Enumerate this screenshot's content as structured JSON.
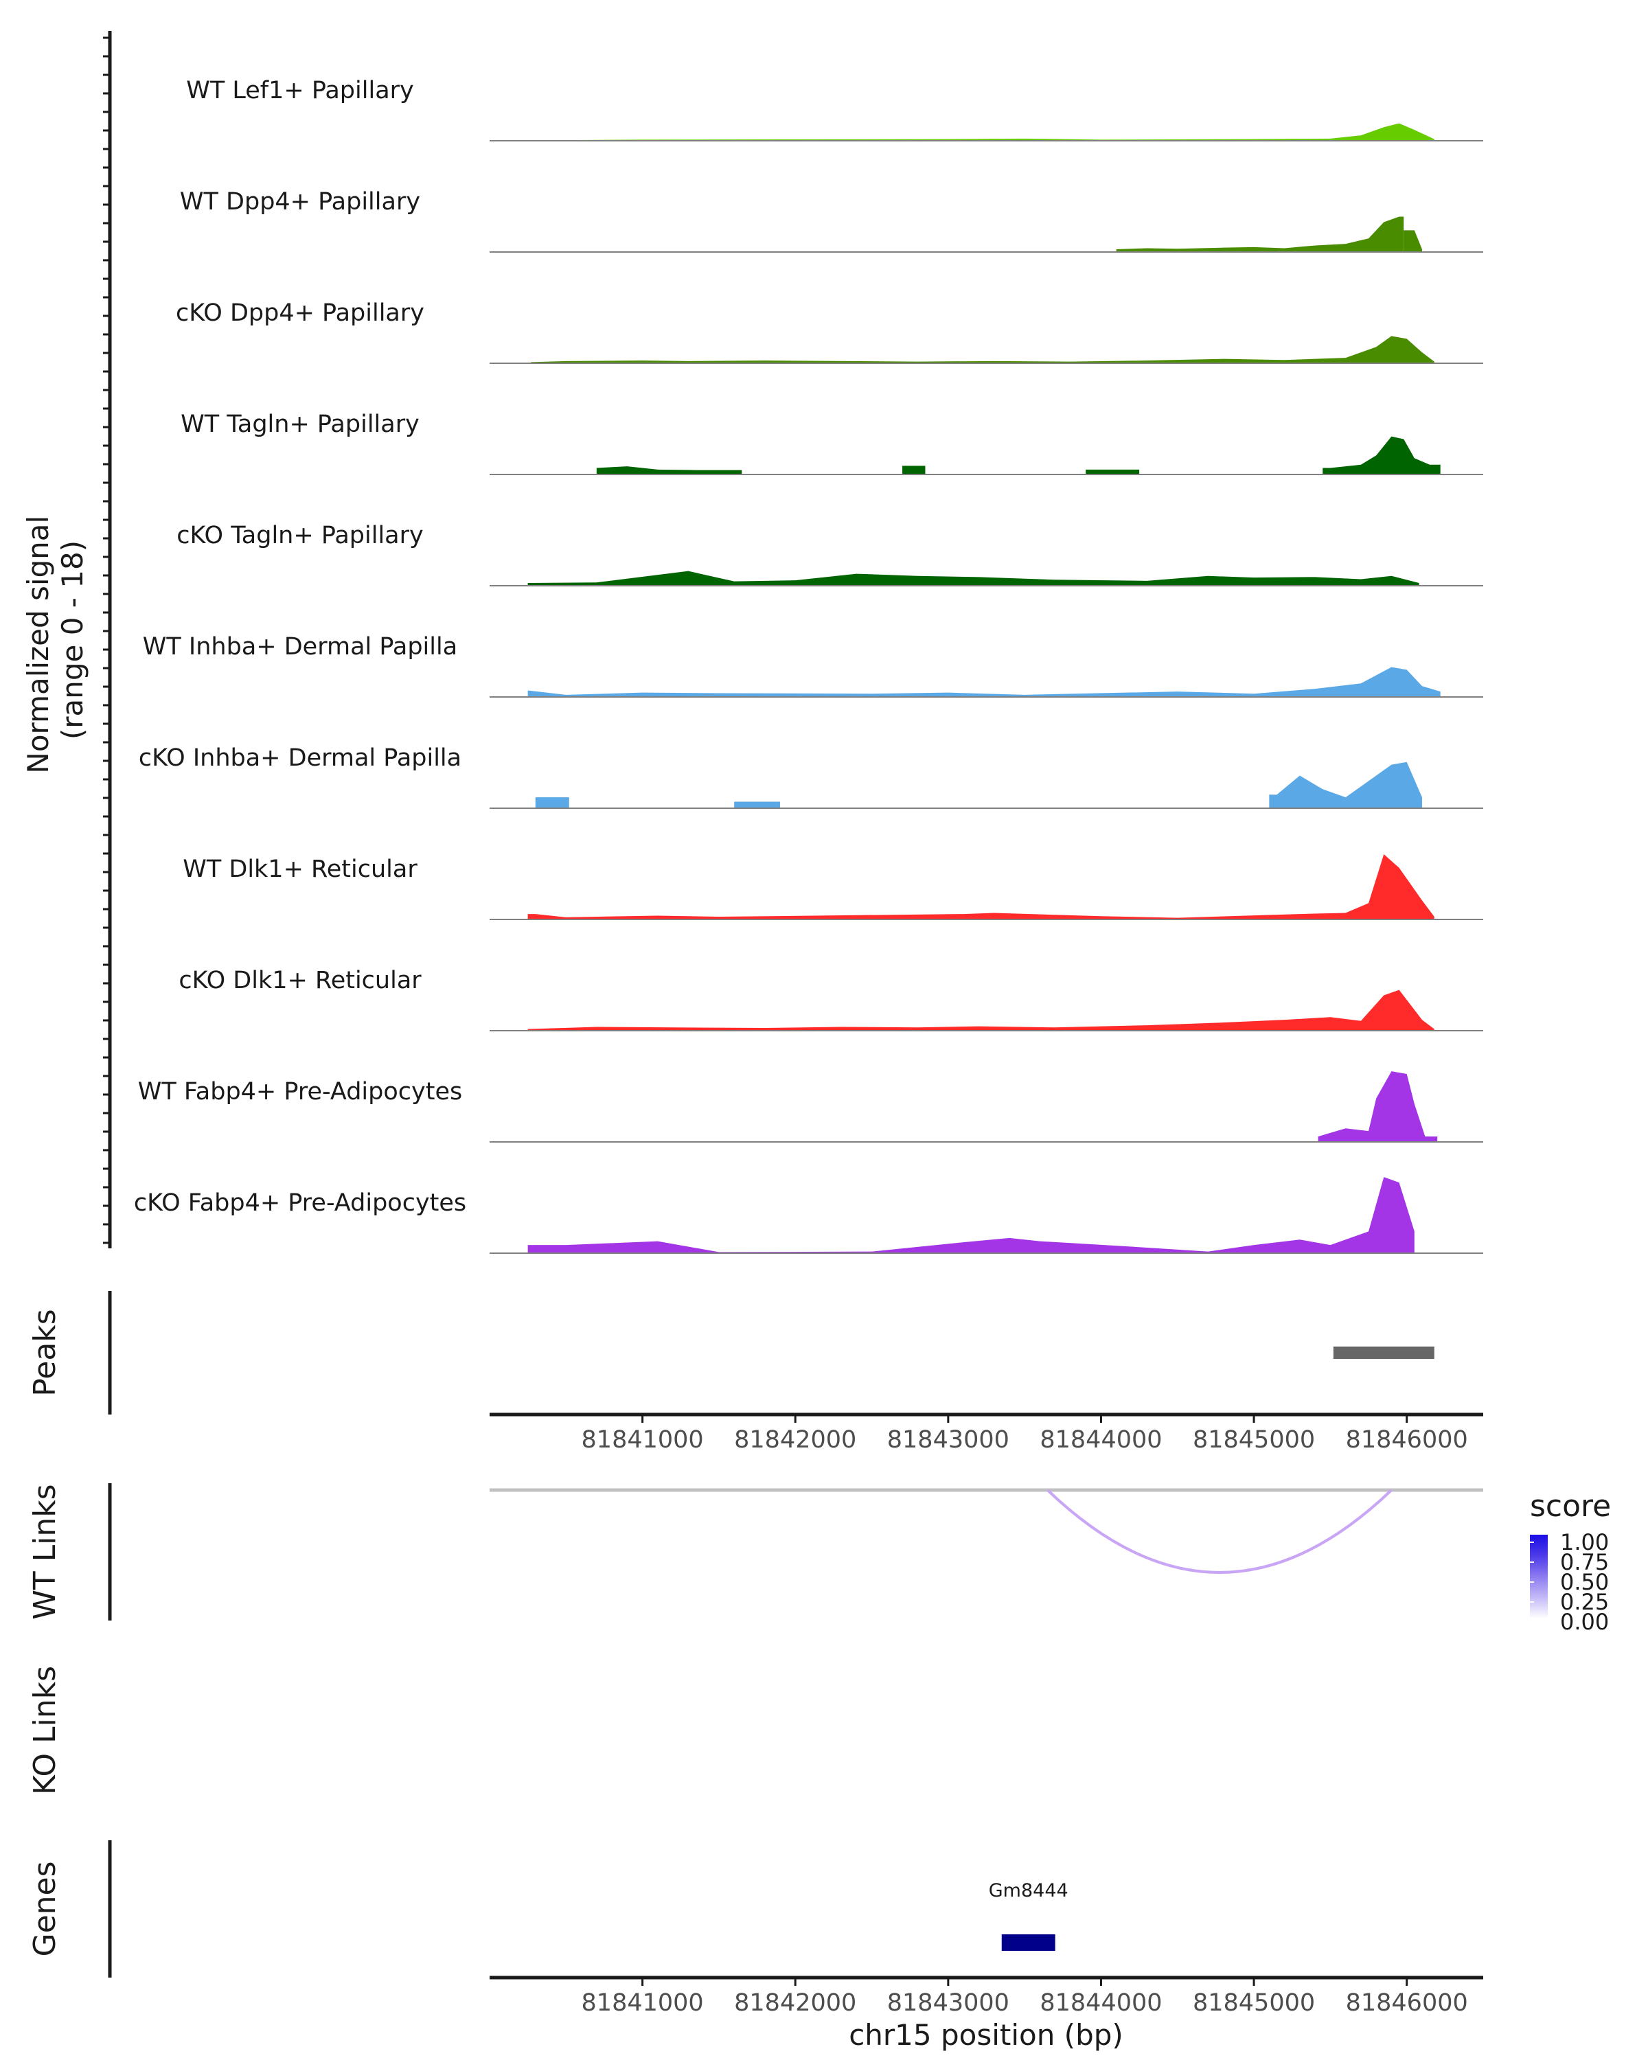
{
  "chart_data": {
    "type": "area",
    "region": {
      "chromosome": "chr15",
      "start": 81840000,
      "end": 81846500
    },
    "ylabel": {
      "line1": "Normalized signal",
      "line2": "(range 0 - 18)"
    },
    "ylim": [
      0,
      18
    ],
    "xlabel": "chr15 position (bp)",
    "xticks": [
      {
        "value": 81841000,
        "label": "81841000"
      },
      {
        "value": 81842000,
        "label": "81842000"
      },
      {
        "value": 81843000,
        "label": "81843000"
      },
      {
        "value": 81844000,
        "label": "81844000"
      },
      {
        "value": 81845000,
        "label": "81845000"
      },
      {
        "value": 81846000,
        "label": "81846000"
      }
    ],
    "tracks": [
      {
        "name": "WT Lef1+ Papillary",
        "color": "#66cc00",
        "segments": [
          [
            81840380,
            81846180
          ]
        ],
        "points": [
          [
            81840380,
            0.1
          ],
          [
            81841000,
            0.2
          ],
          [
            81842000,
            0.25
          ],
          [
            81843000,
            0.3
          ],
          [
            81843500,
            0.4
          ],
          [
            81844000,
            0.2
          ],
          [
            81845000,
            0.3
          ],
          [
            81845500,
            0.4
          ],
          [
            81845700,
            1.0
          ],
          [
            81845850,
            2.5
          ],
          [
            81845950,
            3.2
          ],
          [
            81846050,
            2.0
          ],
          [
            81846180,
            0.3
          ]
        ]
      },
      {
        "name": "WT Dpp4+ Papillary",
        "color": "#4a8c00",
        "segments": [
          [
            81844100,
            81845980
          ],
          [
            81845980,
            81846100
          ]
        ],
        "points": [
          [
            81844100,
            0.5
          ],
          [
            81844300,
            0.7
          ],
          [
            81844500,
            0.6
          ],
          [
            81844800,
            0.8
          ],
          [
            81845000,
            0.9
          ],
          [
            81845200,
            0.7
          ],
          [
            81845400,
            1.2
          ],
          [
            81845600,
            1.5
          ],
          [
            81845750,
            2.5
          ],
          [
            81845850,
            5.5
          ],
          [
            81845950,
            6.5
          ],
          [
            81846050,
            4.0
          ],
          [
            81846100,
            0.5
          ]
        ]
      },
      {
        "name": "cKO Dpp4+ Papillary",
        "color": "#4a8c00",
        "segments": [
          [
            81840270,
            81846180
          ]
        ],
        "points": [
          [
            81840270,
            0.2
          ],
          [
            81840500,
            0.4
          ],
          [
            81841000,
            0.5
          ],
          [
            81841300,
            0.4
          ],
          [
            81841800,
            0.5
          ],
          [
            81842800,
            0.3
          ],
          [
            81843300,
            0.4
          ],
          [
            81843800,
            0.3
          ],
          [
            81844300,
            0.5
          ],
          [
            81844800,
            0.8
          ],
          [
            81845200,
            0.6
          ],
          [
            81845600,
            1.0
          ],
          [
            81845800,
            3.0
          ],
          [
            81845900,
            5.0
          ],
          [
            81846000,
            4.5
          ],
          [
            81846100,
            2.0
          ],
          [
            81846180,
            0.3
          ]
        ]
      },
      {
        "name": "WT Tagln+ Papillary",
        "color": "#006400",
        "segments": [
          [
            81840700,
            81841650
          ],
          [
            81842700,
            81842850
          ],
          [
            81843900,
            81844250
          ],
          [
            81845450,
            81846220
          ]
        ],
        "points": [
          [
            81840700,
            1.2
          ],
          [
            81840900,
            1.5
          ],
          [
            81841100,
            0.9
          ],
          [
            81841400,
            0.8
          ],
          [
            81842750,
            1.6
          ],
          [
            81844000,
            0.9
          ],
          [
            81844200,
            0.9
          ],
          [
            81845500,
            1.2
          ],
          [
            81845700,
            1.8
          ],
          [
            81845800,
            3.5
          ],
          [
            81845900,
            7.0
          ],
          [
            81845980,
            6.5
          ],
          [
            81846050,
            3.0
          ],
          [
            81846150,
            1.8
          ],
          [
            81846220,
            1.8
          ]
        ]
      },
      {
        "name": "cKO Tagln+ Papillary",
        "color": "#006400",
        "segments": [
          [
            81840250,
            81846080
          ]
        ],
        "points": [
          [
            81840250,
            0.5
          ],
          [
            81840700,
            0.6
          ],
          [
            81841300,
            2.7
          ],
          [
            81841600,
            0.8
          ],
          [
            81842000,
            1.0
          ],
          [
            81842400,
            2.2
          ],
          [
            81842800,
            1.8
          ],
          [
            81843200,
            1.6
          ],
          [
            81843700,
            1.1
          ],
          [
            81844300,
            0.9
          ],
          [
            81844700,
            1.8
          ],
          [
            81845000,
            1.5
          ],
          [
            81845400,
            1.6
          ],
          [
            81845700,
            1.2
          ],
          [
            81845900,
            1.8
          ],
          [
            81846080,
            0.5
          ]
        ]
      },
      {
        "name": "WT Inhba+ Dermal Papilla",
        "color": "#5aa9e6",
        "segments": [
          [
            81840250,
            81846220
          ]
        ],
        "points": [
          [
            81840250,
            1.2
          ],
          [
            81840500,
            0.4
          ],
          [
            81841000,
            0.8
          ],
          [
            81841500,
            0.7
          ],
          [
            81842500,
            0.6
          ],
          [
            81843000,
            0.8
          ],
          [
            81843500,
            0.4
          ],
          [
            81844500,
            1.0
          ],
          [
            81845000,
            0.6
          ],
          [
            81845400,
            1.5
          ],
          [
            81845700,
            2.5
          ],
          [
            81845900,
            5.5
          ],
          [
            81846000,
            5.0
          ],
          [
            81846100,
            2.0
          ],
          [
            81846220,
            1.0
          ]
        ]
      },
      {
        "name": "cKO Inhba+ Dermal Papilla",
        "color": "#5aa9e6",
        "segments": [
          [
            81840300,
            81840520
          ],
          [
            81841600,
            81841900
          ],
          [
            81845100,
            81846100
          ]
        ],
        "points": [
          [
            81840400,
            2.0
          ],
          [
            81841700,
            1.2
          ],
          [
            81841850,
            1.2
          ],
          [
            81845150,
            2.5
          ],
          [
            81845300,
            6.0
          ],
          [
            81845450,
            3.5
          ],
          [
            81845600,
            2.0
          ],
          [
            81845800,
            6.0
          ],
          [
            81845900,
            8.0
          ],
          [
            81846000,
            8.5
          ],
          [
            81846100,
            2.0
          ]
        ]
      },
      {
        "name": "WT Dlk1+ Reticular",
        "color": "#ff2a2a",
        "segments": [
          [
            81840250,
            81846180
          ]
        ],
        "points": [
          [
            81840300,
            1.0
          ],
          [
            81840500,
            0.4
          ],
          [
            81841100,
            0.7
          ],
          [
            81841500,
            0.5
          ],
          [
            81843100,
            1.0
          ],
          [
            81843300,
            1.2
          ],
          [
            81844000,
            0.6
          ],
          [
            81844500,
            0.3
          ],
          [
            81845300,
            1.0
          ],
          [
            81845600,
            1.2
          ],
          [
            81845750,
            3.0
          ],
          [
            81845850,
            12.0
          ],
          [
            81845950,
            9.5
          ],
          [
            81846100,
            3.5
          ],
          [
            81846180,
            0.5
          ]
        ]
      },
      {
        "name": "cKO Dlk1+ Reticular",
        "color": "#ff2a2a",
        "segments": [
          [
            81840250,
            81846180
          ]
        ],
        "points": [
          [
            81840250,
            0.3
          ],
          [
            81840700,
            0.7
          ],
          [
            81841200,
            0.6
          ],
          [
            81841800,
            0.5
          ],
          [
            81842300,
            0.7
          ],
          [
            81842800,
            0.6
          ],
          [
            81843200,
            0.8
          ],
          [
            81843700,
            0.6
          ],
          [
            81844300,
            1.0
          ],
          [
            81844800,
            1.5
          ],
          [
            81845200,
            2.0
          ],
          [
            81845500,
            2.5
          ],
          [
            81845700,
            1.8
          ],
          [
            81845850,
            6.5
          ],
          [
            81845950,
            7.5
          ],
          [
            81846100,
            2.0
          ],
          [
            81846180,
            0.3
          ]
        ]
      },
      {
        "name": "WT Fabp4+ Pre-Adipocytes",
        "color": "#a335e6",
        "segments": [
          [
            81845420,
            81846200
          ]
        ],
        "points": [
          [
            81845420,
            1.0
          ],
          [
            81845600,
            2.5
          ],
          [
            81845750,
            2.0
          ],
          [
            81845800,
            8.0
          ],
          [
            81845900,
            13.0
          ],
          [
            81846000,
            12.5
          ],
          [
            81846050,
            7.0
          ],
          [
            81846120,
            1.0
          ],
          [
            81846200,
            1.0
          ]
        ]
      },
      {
        "name": "cKO Fabp4+ Pre-Adipocytes",
        "color": "#a335e6",
        "segments": [
          [
            81840250,
            81846050
          ]
        ],
        "points": [
          [
            81840300,
            1.5
          ],
          [
            81840500,
            1.5
          ],
          [
            81841100,
            2.2
          ],
          [
            81841500,
            0.2
          ],
          [
            81842500,
            0.3
          ],
          [
            81843100,
            2.0
          ],
          [
            81843400,
            2.8
          ],
          [
            81843600,
            2.2
          ],
          [
            81844200,
            1.2
          ],
          [
            81844700,
            0.3
          ],
          [
            81845000,
            1.5
          ],
          [
            81845300,
            2.5
          ],
          [
            81845500,
            1.5
          ],
          [
            81845750,
            4.0
          ],
          [
            81845850,
            14.0
          ],
          [
            81845950,
            13.0
          ],
          [
            81846050,
            4.0
          ]
        ]
      }
    ],
    "peaks": {
      "label": "Peaks",
      "ranges": [
        [
          81845520,
          81846180
        ]
      ],
      "color": "#666666"
    },
    "wt_links": {
      "label": "WT Links",
      "links": [
        {
          "start": 81843650,
          "end": 81845900,
          "score": 0.35
        }
      ],
      "color": "#c9a5f5"
    },
    "ko_links": {
      "label": "KO Links",
      "links": []
    },
    "genes": {
      "label": "Genes",
      "items": [
        {
          "name": "Gm8444",
          "start": 81843350,
          "end": 81843700
        }
      ],
      "color": "#00008b"
    },
    "legend": {
      "title": "score",
      "labels": [
        "1.00",
        "0.75",
        "0.50",
        "0.25",
        "0.00"
      ],
      "colors": [
        "#1a0ce6",
        "#4d3be8",
        "#8c7bf0",
        "#c4baf7",
        "#ffffff"
      ]
    }
  }
}
